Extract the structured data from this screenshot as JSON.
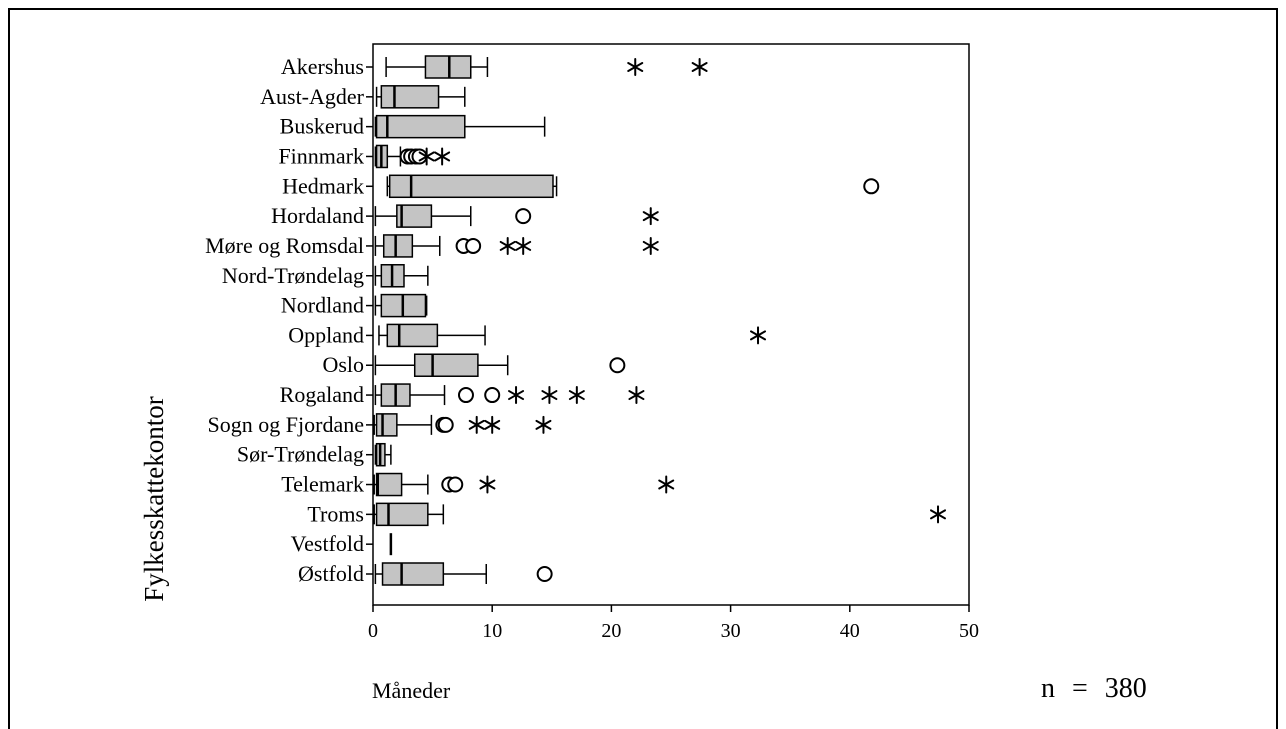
{
  "colors": {
    "box_fill": "#c4c4c4",
    "line": "#000000",
    "background": "#ffffff"
  },
  "chart_data": {
    "type": "boxplot",
    "orientation": "horizontal",
    "xlabel": "Måneder",
    "ylabel": "Fylkesskattekontor",
    "xlim": [
      0,
      50
    ],
    "xticks": [
      0,
      10,
      20,
      30,
      40,
      50
    ],
    "grid": false,
    "annotation": "n = 380",
    "categories": [
      "Akershus",
      "Aust-Agder",
      "Buskerud",
      "Finnmark",
      "Hedmark",
      "Hordaland",
      "Møre og Romsdal",
      "Nord-Trøndelag",
      "Nordland",
      "Oppland",
      "Oslo",
      "Rogaland",
      "Sogn og Fjordane",
      "Sør-Trøndelag",
      "Telemark",
      "Troms",
      "Vestfold",
      "Østfold"
    ],
    "boxes": [
      {
        "min": 1.1,
        "q1": 4.4,
        "median": 6.4,
        "q3": 8.2,
        "max": 9.6,
        "circles": [],
        "stars": [
          22.0,
          27.4
        ]
      },
      {
        "min": 0.3,
        "q1": 0.7,
        "median": 1.8,
        "q3": 5.5,
        "max": 7.7,
        "circles": [],
        "stars": []
      },
      {
        "min": 0.2,
        "q1": 0.3,
        "median": 1.2,
        "q3": 7.7,
        "max": 14.4,
        "circles": [],
        "stars": []
      },
      {
        "min": 0.2,
        "q1": 0.3,
        "median": 0.7,
        "q3": 1.2,
        "max": 2.3,
        "circles": [
          2.9,
          3.2,
          3.6,
          3.9
        ],
        "stars": [
          4.5,
          5.8
        ]
      },
      {
        "min": 1.2,
        "q1": 1.4,
        "median": 3.2,
        "q3": 15.1,
        "max": 15.4,
        "circles": [
          41.8
        ],
        "stars": []
      },
      {
        "min": 0.2,
        "q1": 2.0,
        "median": 2.4,
        "q3": 4.9,
        "max": 8.2,
        "circles": [
          12.6
        ],
        "stars": [
          23.3
        ]
      },
      {
        "min": 0.2,
        "q1": 0.9,
        "median": 1.9,
        "q3": 3.3,
        "max": 5.6,
        "circles": [
          7.6,
          8.4
        ],
        "stars": [
          11.3,
          12.6,
          23.3
        ]
      },
      {
        "min": 0.2,
        "q1": 0.7,
        "median": 1.6,
        "q3": 2.6,
        "max": 4.6,
        "circles": [],
        "stars": []
      },
      {
        "min": 0.2,
        "q1": 0.7,
        "median": 2.5,
        "q3": 4.4,
        "max": 4.5,
        "circles": [],
        "stars": []
      },
      {
        "min": 0.5,
        "q1": 1.2,
        "median": 2.2,
        "q3": 5.4,
        "max": 9.4,
        "circles": [],
        "stars": [
          32.3
        ]
      },
      {
        "min": 0.2,
        "q1": 3.5,
        "median": 5.0,
        "q3": 8.8,
        "max": 11.3,
        "circles": [
          20.5
        ],
        "stars": []
      },
      {
        "min": 0.2,
        "q1": 0.7,
        "median": 1.9,
        "q3": 3.1,
        "max": 6.0,
        "circles": [
          7.8,
          10.0
        ],
        "stars": [
          12.0,
          14.8,
          17.1,
          22.1
        ]
      },
      {
        "min": 0.1,
        "q1": 0.3,
        "median": 0.8,
        "q3": 2.0,
        "max": 4.9,
        "circles": [
          5.9,
          6.1
        ],
        "stars": [
          8.7,
          10.0,
          14.3
        ]
      },
      {
        "min": 0.2,
        "q1": 0.3,
        "median": 0.6,
        "q3": 1.0,
        "max": 1.5,
        "circles": [],
        "stars": []
      },
      {
        "min": 0.1,
        "q1": 0.3,
        "median": 0.4,
        "q3": 2.4,
        "max": 4.6,
        "circles": [
          6.4,
          6.9
        ],
        "stars": [
          9.6,
          24.6
        ]
      },
      {
        "min": 0.1,
        "q1": 0.3,
        "median": 1.3,
        "q3": 4.6,
        "max": 5.9,
        "circles": [],
        "stars": [
          47.4
        ]
      },
      {
        "min": 1.5,
        "q1": 1.5,
        "median": 1.5,
        "q3": 1.5,
        "max": 1.5,
        "circles": [],
        "stars": []
      },
      {
        "min": 0.2,
        "q1": 0.8,
        "median": 2.4,
        "q3": 5.9,
        "max": 9.5,
        "circles": [
          14.4
        ],
        "stars": []
      }
    ]
  }
}
